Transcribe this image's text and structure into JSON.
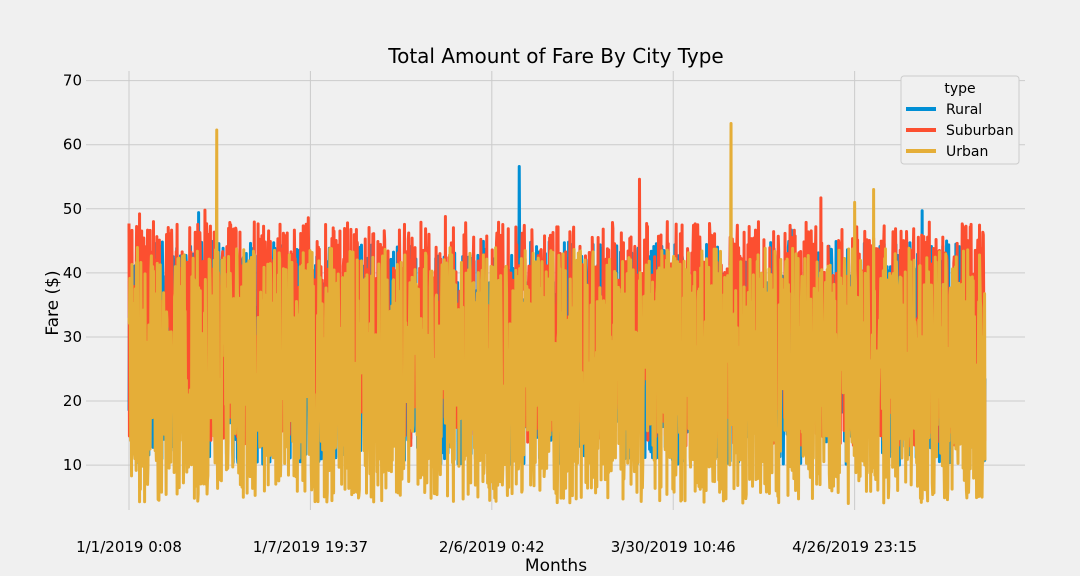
{
  "chart_data": {
    "type": "line",
    "title": "Total Amount of Fare By City Type",
    "xlabel": "Months",
    "ylabel": "Fare ($)",
    "ylim": [
      3,
      71.5
    ],
    "yticks": [
      10,
      20,
      30,
      40,
      50,
      60,
      70
    ],
    "xticks": [
      "1/1/2019 0:08",
      "1/7/2019 19:37",
      "2/6/2019 0:42",
      "3/30/2019 10:46",
      "4/26/2019 23:15"
    ],
    "xtick_index": [
      0,
      430,
      860,
      1290,
      1720
    ],
    "n_points": 2030,
    "grid": true,
    "legend": {
      "title": "type",
      "position": "top-right",
      "entries": [
        "Rural",
        "Suburban",
        "Urban"
      ]
    },
    "colors": {
      "Rural": "#008fd5",
      "Suburban": "#fc4f30",
      "Urban": "#e5ae38"
    },
    "series": [
      {
        "name": "Rural",
        "peaks": [
          [
            165,
            49.4
          ],
          [
            310,
            42.6
          ],
          [
            925,
            56.6
          ],
          [
            1570,
            46.7
          ],
          [
            1645,
            38.3
          ],
          [
            1880,
            49.7
          ]
        ]
      },
      {
        "name": "Suburban",
        "peaks": [
          [
            0,
            47.7
          ],
          [
            25,
            49.2
          ],
          [
            180,
            49.8
          ],
          [
            425,
            48.6
          ],
          [
            750,
            48.8
          ],
          [
            1210,
            54.6
          ],
          [
            1640,
            51.7
          ],
          [
            1830,
            46.5
          ]
        ]
      },
      {
        "name": "Urban",
        "peaks": [
          [
            208,
            62.3
          ],
          [
            1427,
            63.3
          ],
          [
            1765,
            53.0
          ],
          [
            1720,
            51.0
          ]
        ]
      }
    ]
  }
}
